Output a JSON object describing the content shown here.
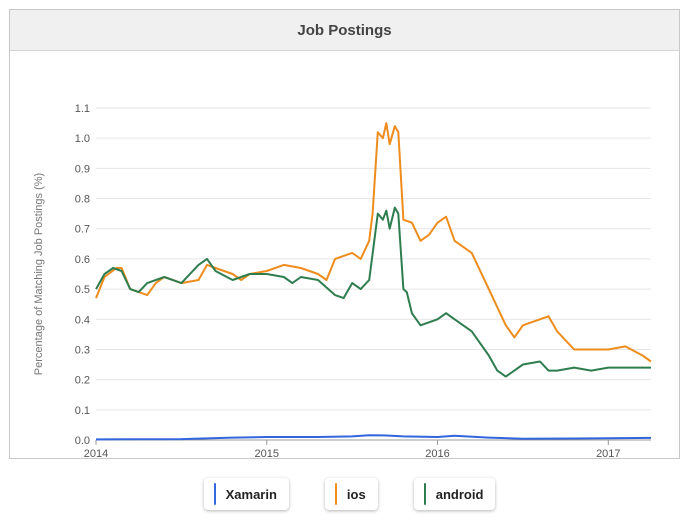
{
  "header": {
    "title": "Job Postings"
  },
  "chart_data": {
    "type": "line",
    "title": "Job Postings",
    "ylabel": "Percentage of Matching Job Postings (%)",
    "xlabel": "",
    "xlim": [
      2014.0,
      2017.25
    ],
    "ylim": [
      0,
      1.1
    ],
    "yticks": [
      0.0,
      0.1,
      0.2,
      0.3,
      0.4,
      0.5,
      0.6,
      0.7,
      0.8,
      0.9,
      1.0,
      1.1
    ],
    "yticks_labels": [
      "0.0",
      "0.1",
      "0.2",
      "0.3",
      "0.4",
      "0.5",
      "0.6",
      "0.7",
      "0.8",
      "0.9",
      "1.0",
      "1.1"
    ],
    "xticks": [
      2014,
      2015,
      2016,
      2017
    ],
    "xticks_labels": [
      "2014",
      "2015",
      "2016",
      "2017"
    ],
    "grid": true,
    "legend": "bottom",
    "series": [
      {
        "name": "Xamarin",
        "color": "#3366dd",
        "x": [
          2014.0,
          2014.5,
          2014.8,
          2015.0,
          2015.3,
          2015.5,
          2015.6,
          2015.7,
          2015.8,
          2016.0,
          2016.1,
          2016.3,
          2016.5,
          2016.8,
          2017.0,
          2017.25
        ],
        "y": [
          0.002,
          0.003,
          0.008,
          0.01,
          0.01,
          0.012,
          0.016,
          0.015,
          0.012,
          0.01,
          0.014,
          0.008,
          0.004,
          0.005,
          0.006,
          0.007
        ]
      },
      {
        "name": "ios",
        "color": "#ee8c1c",
        "x": [
          2014.0,
          2014.05,
          2014.12,
          2014.15,
          2014.2,
          2014.3,
          2014.35,
          2014.4,
          2014.5,
          2014.6,
          2014.65,
          2014.7,
          2014.8,
          2014.85,
          2014.9,
          2015.0,
          2015.1,
          2015.2,
          2015.3,
          2015.35,
          2015.4,
          2015.5,
          2015.55,
          2015.6,
          2015.62,
          2015.65,
          2015.68,
          2015.7,
          2015.72,
          2015.75,
          2015.77,
          2015.8,
          2015.85,
          2015.9,
          2015.95,
          2016.0,
          2016.05,
          2016.1,
          2016.2,
          2016.3,
          2016.4,
          2016.45,
          2016.5,
          2016.6,
          2016.65,
          2016.7,
          2016.8,
          2016.9,
          2017.0,
          2017.1,
          2017.2,
          2017.25
        ],
        "y": [
          0.47,
          0.54,
          0.57,
          0.57,
          0.5,
          0.48,
          0.52,
          0.54,
          0.52,
          0.53,
          0.58,
          0.57,
          0.55,
          0.53,
          0.55,
          0.56,
          0.58,
          0.57,
          0.55,
          0.53,
          0.6,
          0.62,
          0.6,
          0.66,
          0.75,
          1.02,
          1.0,
          1.05,
          0.98,
          1.04,
          1.02,
          0.73,
          0.72,
          0.66,
          0.68,
          0.72,
          0.74,
          0.66,
          0.62,
          0.5,
          0.38,
          0.34,
          0.38,
          0.4,
          0.41,
          0.36,
          0.3,
          0.3,
          0.3,
          0.31,
          0.28,
          0.26
        ]
      },
      {
        "name": "android",
        "color": "#2e7d4f",
        "x": [
          2014.0,
          2014.05,
          2014.1,
          2014.15,
          2014.2,
          2014.25,
          2014.3,
          2014.4,
          2014.5,
          2014.6,
          2014.65,
          2014.7,
          2014.8,
          2014.9,
          2015.0,
          2015.1,
          2015.15,
          2015.2,
          2015.3,
          2015.4,
          2015.45,
          2015.5,
          2015.55,
          2015.6,
          2015.65,
          2015.68,
          2015.7,
          2015.72,
          2015.75,
          2015.77,
          2015.8,
          2015.82,
          2015.85,
          2015.9,
          2015.95,
          2016.0,
          2016.05,
          2016.1,
          2016.2,
          2016.3,
          2016.35,
          2016.4,
          2016.5,
          2016.6,
          2016.65,
          2016.7,
          2016.8,
          2016.9,
          2017.0,
          2017.1,
          2017.2,
          2017.25
        ],
        "y": [
          0.5,
          0.55,
          0.57,
          0.56,
          0.5,
          0.49,
          0.52,
          0.54,
          0.52,
          0.58,
          0.6,
          0.56,
          0.53,
          0.55,
          0.55,
          0.54,
          0.52,
          0.54,
          0.53,
          0.48,
          0.47,
          0.52,
          0.5,
          0.53,
          0.75,
          0.73,
          0.76,
          0.7,
          0.77,
          0.75,
          0.5,
          0.49,
          0.42,
          0.38,
          0.39,
          0.4,
          0.42,
          0.4,
          0.36,
          0.28,
          0.23,
          0.21,
          0.25,
          0.26,
          0.23,
          0.23,
          0.24,
          0.23,
          0.24,
          0.24,
          0.24,
          0.24
        ]
      }
    ]
  },
  "legend": {
    "items": [
      {
        "label": "Xamarin",
        "color": "#3366dd"
      },
      {
        "label": "ios",
        "color": "#ee8c1c"
      },
      {
        "label": "android",
        "color": "#2e7d4f"
      }
    ]
  }
}
